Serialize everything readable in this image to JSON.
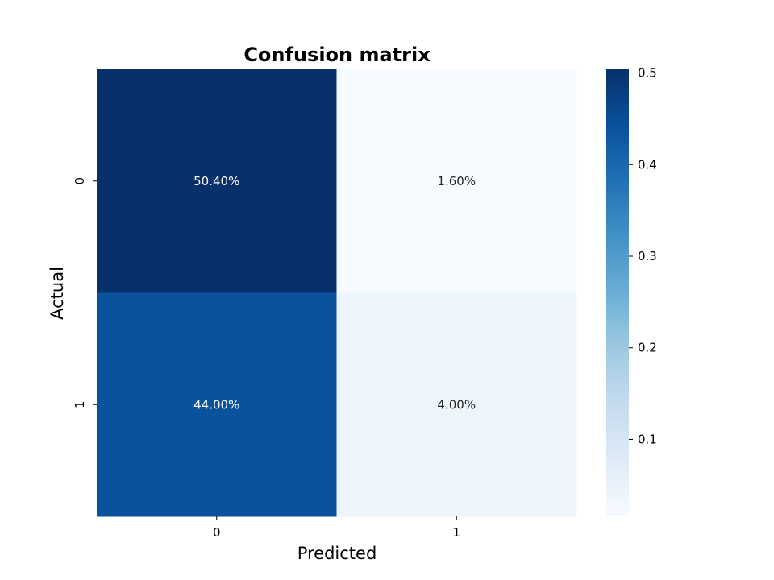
{
  "chart_data": {
    "type": "heatmap",
    "title": "Confusion matrix",
    "xlabel": "Predicted",
    "ylabel": "Actual",
    "x_categories": [
      "0",
      "1"
    ],
    "y_categories": [
      "0",
      "1"
    ],
    "values": [
      [
        0.504,
        0.016
      ],
      [
        0.44,
        0.04
      ]
    ],
    "cell_labels": [
      [
        "50.40%",
        "1.60%"
      ],
      [
        "44.00%",
        "4.00%"
      ]
    ],
    "colormap": "Blues",
    "colorbar": {
      "range": [
        0.016,
        0.504
      ],
      "ticks": [
        0.1,
        0.2,
        0.3,
        0.4,
        0.5
      ],
      "tick_labels": [
        "0.1",
        "0.2",
        "0.3",
        "0.4",
        "0.5"
      ],
      "placement": "right"
    }
  }
}
